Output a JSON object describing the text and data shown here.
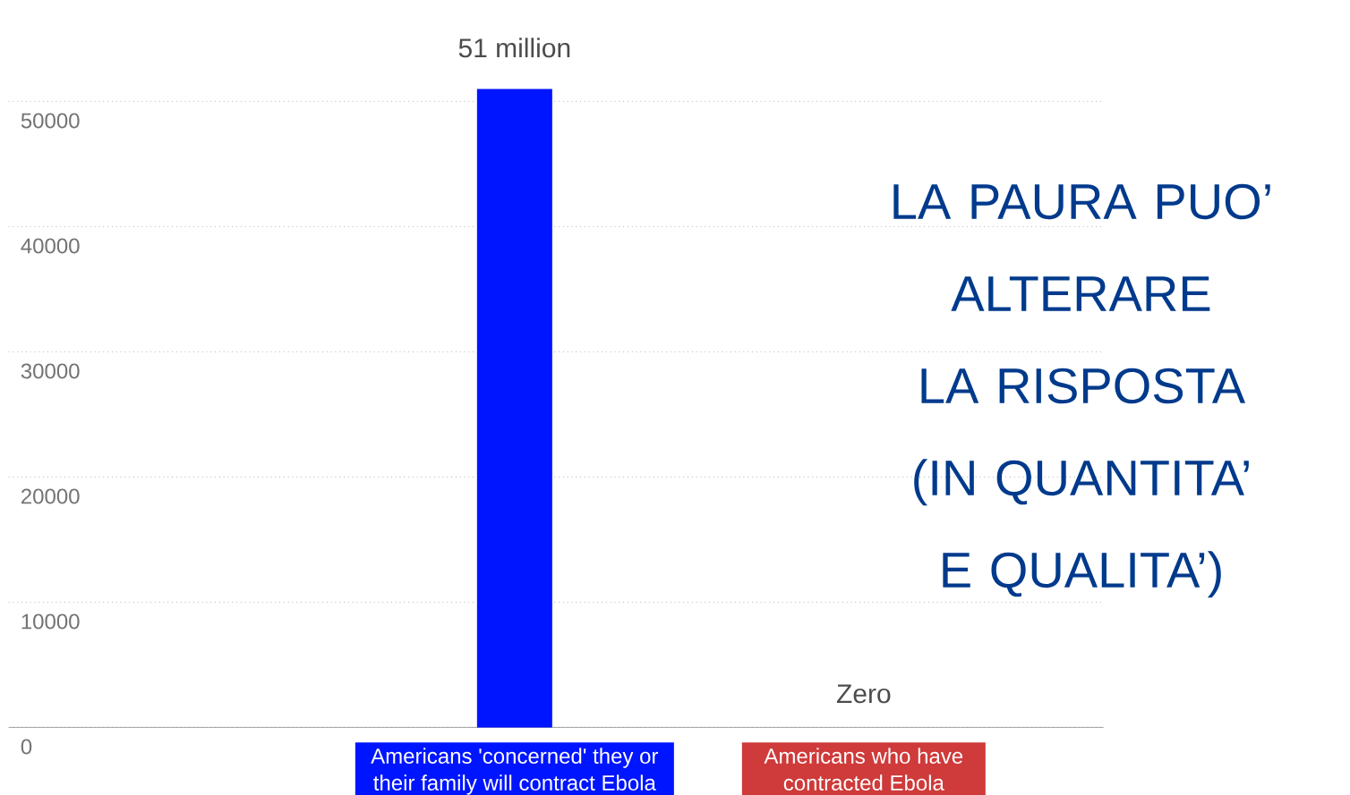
{
  "chart_data": {
    "type": "bar",
    "categories": [
      "Americans 'concerned' they or their family will contract Ebola",
      "Americans who have contracted Ebola"
    ],
    "values": [
      51000,
      0
    ],
    "colors": [
      "#0015ff",
      "#cf3a3a"
    ],
    "ylim": [
      0,
      51000
    ],
    "yticks": [
      0,
      10000,
      20000,
      30000,
      40000,
      50000
    ],
    "grid": "y",
    "annotations": [
      "LA PAURA PUO’ ALTERARE LA RISPOSTA (IN QUANTITA’ E QUALITA’)",
      {
        "text": "51 million",
        "x": "Americans 'concerned' they or their family will contract Ebola",
        "y": 51000
      },
      {
        "text": "Zero",
        "x": "Americans who have contracted Ebola",
        "y": 0
      }
    ]
  }
}
